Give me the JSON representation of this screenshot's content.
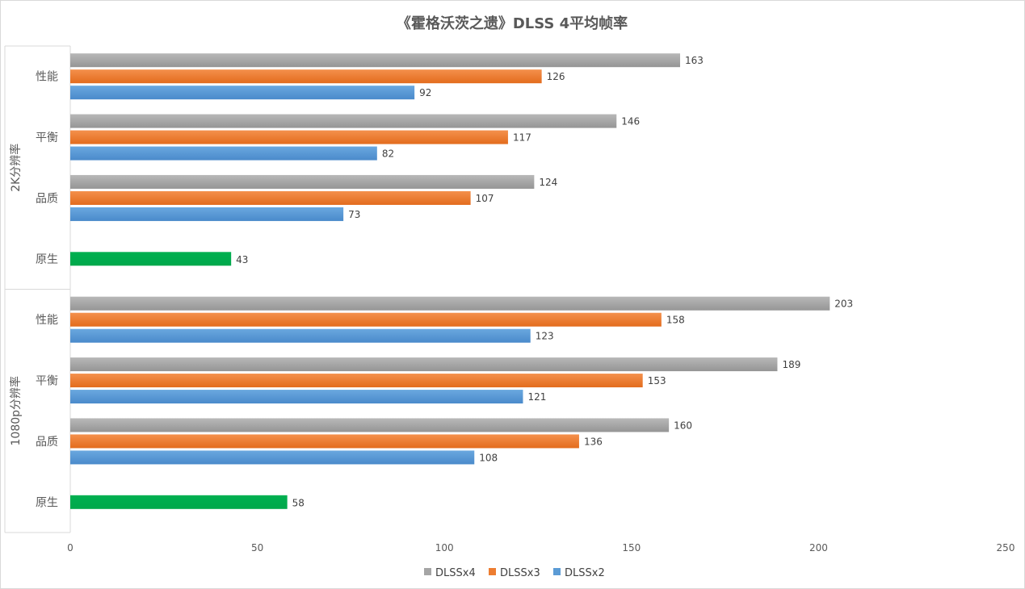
{
  "chart_data": {
    "type": "bar",
    "orientation": "horizontal",
    "title": "《霍格沃茨之遗》DLSS 4平均帧率",
    "xlabel": "",
    "ylabel": "",
    "xlim": [
      0,
      250
    ],
    "xticks": [
      "0",
      "50",
      "100",
      "150",
      "200",
      "250"
    ],
    "grid": false,
    "legend_position": "bottom",
    "colors": {
      "DLSSx4": "#a5a5a5",
      "DLSSx3": "#ed7d31",
      "DLSSx2": "#5b9bd5",
      "native": "#00b050"
    },
    "groups": [
      {
        "name": "2K分辨率",
        "categories": [
          {
            "name": "性能",
            "DLSSx4": 163,
            "DLSSx3": 126,
            "DLSSx2": 92
          },
          {
            "name": "平衡",
            "DLSSx4": 146,
            "DLSSx3": 117,
            "DLSSx2": 82
          },
          {
            "name": "品质",
            "DLSSx4": 124,
            "DLSSx3": 107,
            "DLSSx2": 73
          },
          {
            "name": "原生",
            "native": 43
          }
        ]
      },
      {
        "name": "1080p分辨率",
        "categories": [
          {
            "name": "性能",
            "DLSSx4": 203,
            "DLSSx3": 158,
            "DLSSx2": 123
          },
          {
            "name": "平衡",
            "DLSSx4": 189,
            "DLSSx3": 153,
            "DLSSx2": 121
          },
          {
            "name": "品质",
            "DLSSx4": 160,
            "DLSSx3": 136,
            "DLSSx2": 108
          },
          {
            "name": "原生",
            "native": 58
          }
        ]
      }
    ],
    "legend": [
      "DLSSx4",
      "DLSSx3",
      "DLSSx2"
    ]
  }
}
